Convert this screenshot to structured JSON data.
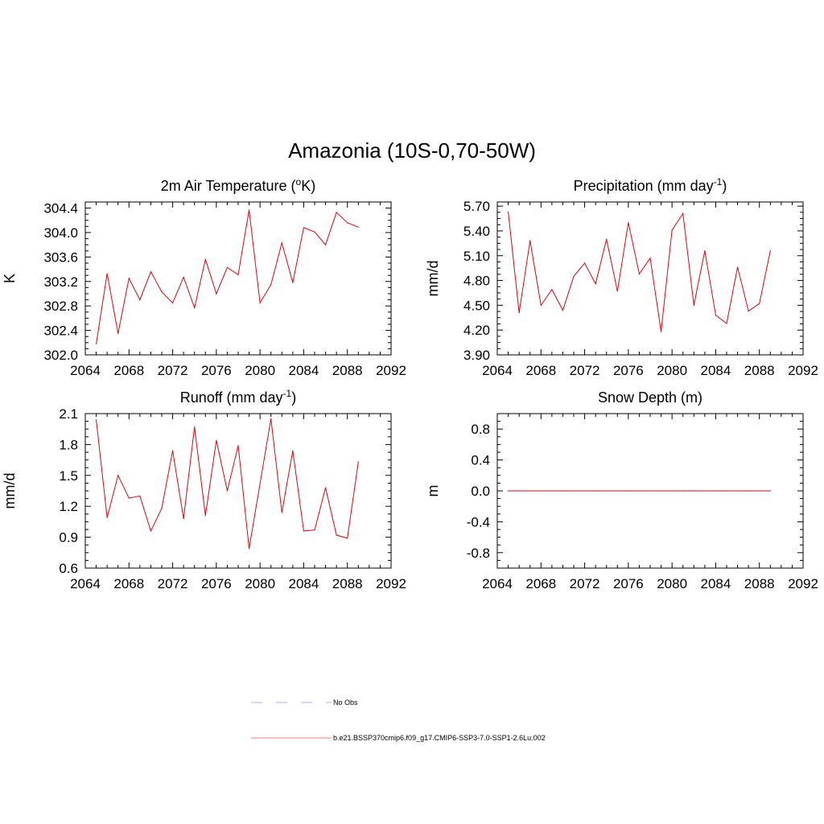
{
  "figure_title": "Amazonia (10S-0,70-50W)",
  "colors": {
    "series": "#e8000b",
    "obs": "#aab0dc",
    "axis": "#000000"
  },
  "chart_data": [
    {
      "type": "line",
      "title": "2m Air Temperature (",
      "title_sup": "o",
      "title_mid": "K)",
      "title_sup2": "",
      "title_end": "",
      "xlabel": "",
      "ylabel": "K",
      "xlim": [
        2064,
        2092
      ],
      "ylim": [
        302.0,
        304.5
      ],
      "xticks": [
        "2064",
        "2068",
        "2072",
        "2076",
        "2080",
        "2084",
        "2088",
        "2092"
      ],
      "yticks": [
        "302.0",
        "302.4",
        "302.8",
        "303.2",
        "303.6",
        "304.0",
        "304.4"
      ],
      "x": [
        2065,
        2066,
        2067,
        2068,
        2069,
        2070,
        2071,
        2072,
        2073,
        2074,
        2075,
        2076,
        2077,
        2078,
        2079,
        2080,
        2081,
        2082,
        2083,
        2084,
        2085,
        2086,
        2087,
        2088,
        2089
      ],
      "series": [
        {
          "name": "b.e21.BSSP370cmip6.f09_g17.CMIP6-SSP3-7.0-SSP1-2.6Lu.002",
          "values": [
            302.18,
            303.33,
            302.35,
            303.25,
            302.9,
            303.36,
            303.03,
            302.85,
            303.27,
            302.77,
            303.56,
            303.0,
            303.43,
            303.31,
            304.37,
            302.85,
            303.15,
            303.83,
            303.18,
            304.08,
            304.01,
            303.8,
            304.33,
            304.16,
            304.09
          ]
        }
      ],
      "grid": false
    },
    {
      "type": "line",
      "title": "Precipitation (mm day",
      "title_sup": "-1",
      "title_mid": ")",
      "title_sup2": "",
      "title_end": "",
      "xlabel": "",
      "ylabel": "mm/d",
      "xlim": [
        2064,
        2092
      ],
      "ylim": [
        3.9,
        5.75
      ],
      "xticks": [
        "2064",
        "2068",
        "2072",
        "2076",
        "2080",
        "2084",
        "2088",
        "2092"
      ],
      "yticks": [
        "3.90",
        "4.20",
        "4.50",
        "4.80",
        "5.10",
        "5.40",
        "5.70"
      ],
      "x": [
        2065,
        2066,
        2067,
        2068,
        2069,
        2070,
        2071,
        2072,
        2073,
        2074,
        2075,
        2076,
        2077,
        2078,
        2079,
        2080,
        2081,
        2082,
        2083,
        2084,
        2085,
        2086,
        2087,
        2088,
        2089
      ],
      "series": [
        {
          "name": "b.e21.BSSP370cmip6.f09_g17.CMIP6-SSP3-7.0-SSP1-2.6Lu.002",
          "values": [
            5.63,
            4.41,
            5.28,
            4.5,
            4.69,
            4.44,
            4.85,
            5.01,
            4.76,
            5.3,
            4.67,
            5.5,
            4.88,
            5.07,
            4.18,
            5.41,
            5.61,
            4.5,
            5.16,
            4.38,
            4.28,
            4.96,
            4.43,
            4.52,
            5.16
          ]
        }
      ],
      "grid": false
    },
    {
      "type": "line",
      "title": "Runoff (mm day",
      "title_sup": "-1",
      "title_mid": ")",
      "title_sup2": "",
      "title_end": "",
      "xlabel": "",
      "ylabel": "mm/d",
      "xlim": [
        2064,
        2092
      ],
      "ylim": [
        0.6,
        2.1
      ],
      "xticks": [
        "2064",
        "2068",
        "2072",
        "2076",
        "2080",
        "2084",
        "2088",
        "2092"
      ],
      "yticks": [
        "0.6",
        "0.9",
        "1.2",
        "1.5",
        "1.8",
        "2.1"
      ],
      "x": [
        2065,
        2066,
        2067,
        2068,
        2069,
        2070,
        2071,
        2072,
        2073,
        2074,
        2075,
        2076,
        2077,
        2078,
        2079,
        2080,
        2081,
        2082,
        2083,
        2084,
        2085,
        2086,
        2087,
        2088,
        2089
      ],
      "series": [
        {
          "name": "b.e21.BSSP370cmip6.f09_g17.CMIP6-SSP3-7.0-SSP1-2.6Lu.002",
          "values": [
            2.04,
            1.09,
            1.5,
            1.28,
            1.3,
            0.96,
            1.18,
            1.74,
            1.08,
            1.97,
            1.11,
            1.84,
            1.35,
            1.79,
            0.79,
            1.42,
            2.05,
            1.14,
            1.74,
            0.96,
            0.97,
            1.38,
            0.92,
            0.89,
            1.63
          ]
        }
      ],
      "grid": false
    },
    {
      "type": "line",
      "title": "Snow Depth (m)",
      "title_sup": "",
      "title_mid": "",
      "title_sup2": "",
      "title_end": "",
      "xlabel": "",
      "ylabel": "m",
      "xlim": [
        2064,
        2092
      ],
      "ylim": [
        -1.0,
        1.0
      ],
      "xticks": [
        "2064",
        "2068",
        "2072",
        "2076",
        "2080",
        "2084",
        "2088",
        "2092"
      ],
      "yticks": [
        "-0.8",
        "-0.4",
        "0.0",
        "0.4",
        "0.8"
      ],
      "x": [
        2065,
        2066,
        2067,
        2068,
        2069,
        2070,
        2071,
        2072,
        2073,
        2074,
        2075,
        2076,
        2077,
        2078,
        2079,
        2080,
        2081,
        2082,
        2083,
        2084,
        2085,
        2086,
        2087,
        2088,
        2089
      ],
      "series": [
        {
          "name": "b.e21.BSSP370cmip6.f09_g17.CMIP6-SSP3-7.0-SSP1-2.6Lu.002",
          "values": [
            0,
            0,
            0,
            0,
            0,
            0,
            0,
            0,
            0,
            0,
            0,
            0,
            0,
            0,
            0,
            0,
            0,
            0,
            0,
            0,
            0,
            0,
            0,
            0,
            0
          ]
        }
      ],
      "grid": false
    }
  ],
  "legend": {
    "placement": "bottom",
    "items": [
      {
        "label": "No Obs",
        "style": "dashed",
        "color": "#aab0dc"
      },
      {
        "label": "b.e21.BSSP370cmip6.f09_g17.CMIP6-SSP3-7.0-SSP1-2.6Lu.002",
        "style": "solid",
        "color": "#f08080"
      }
    ]
  }
}
